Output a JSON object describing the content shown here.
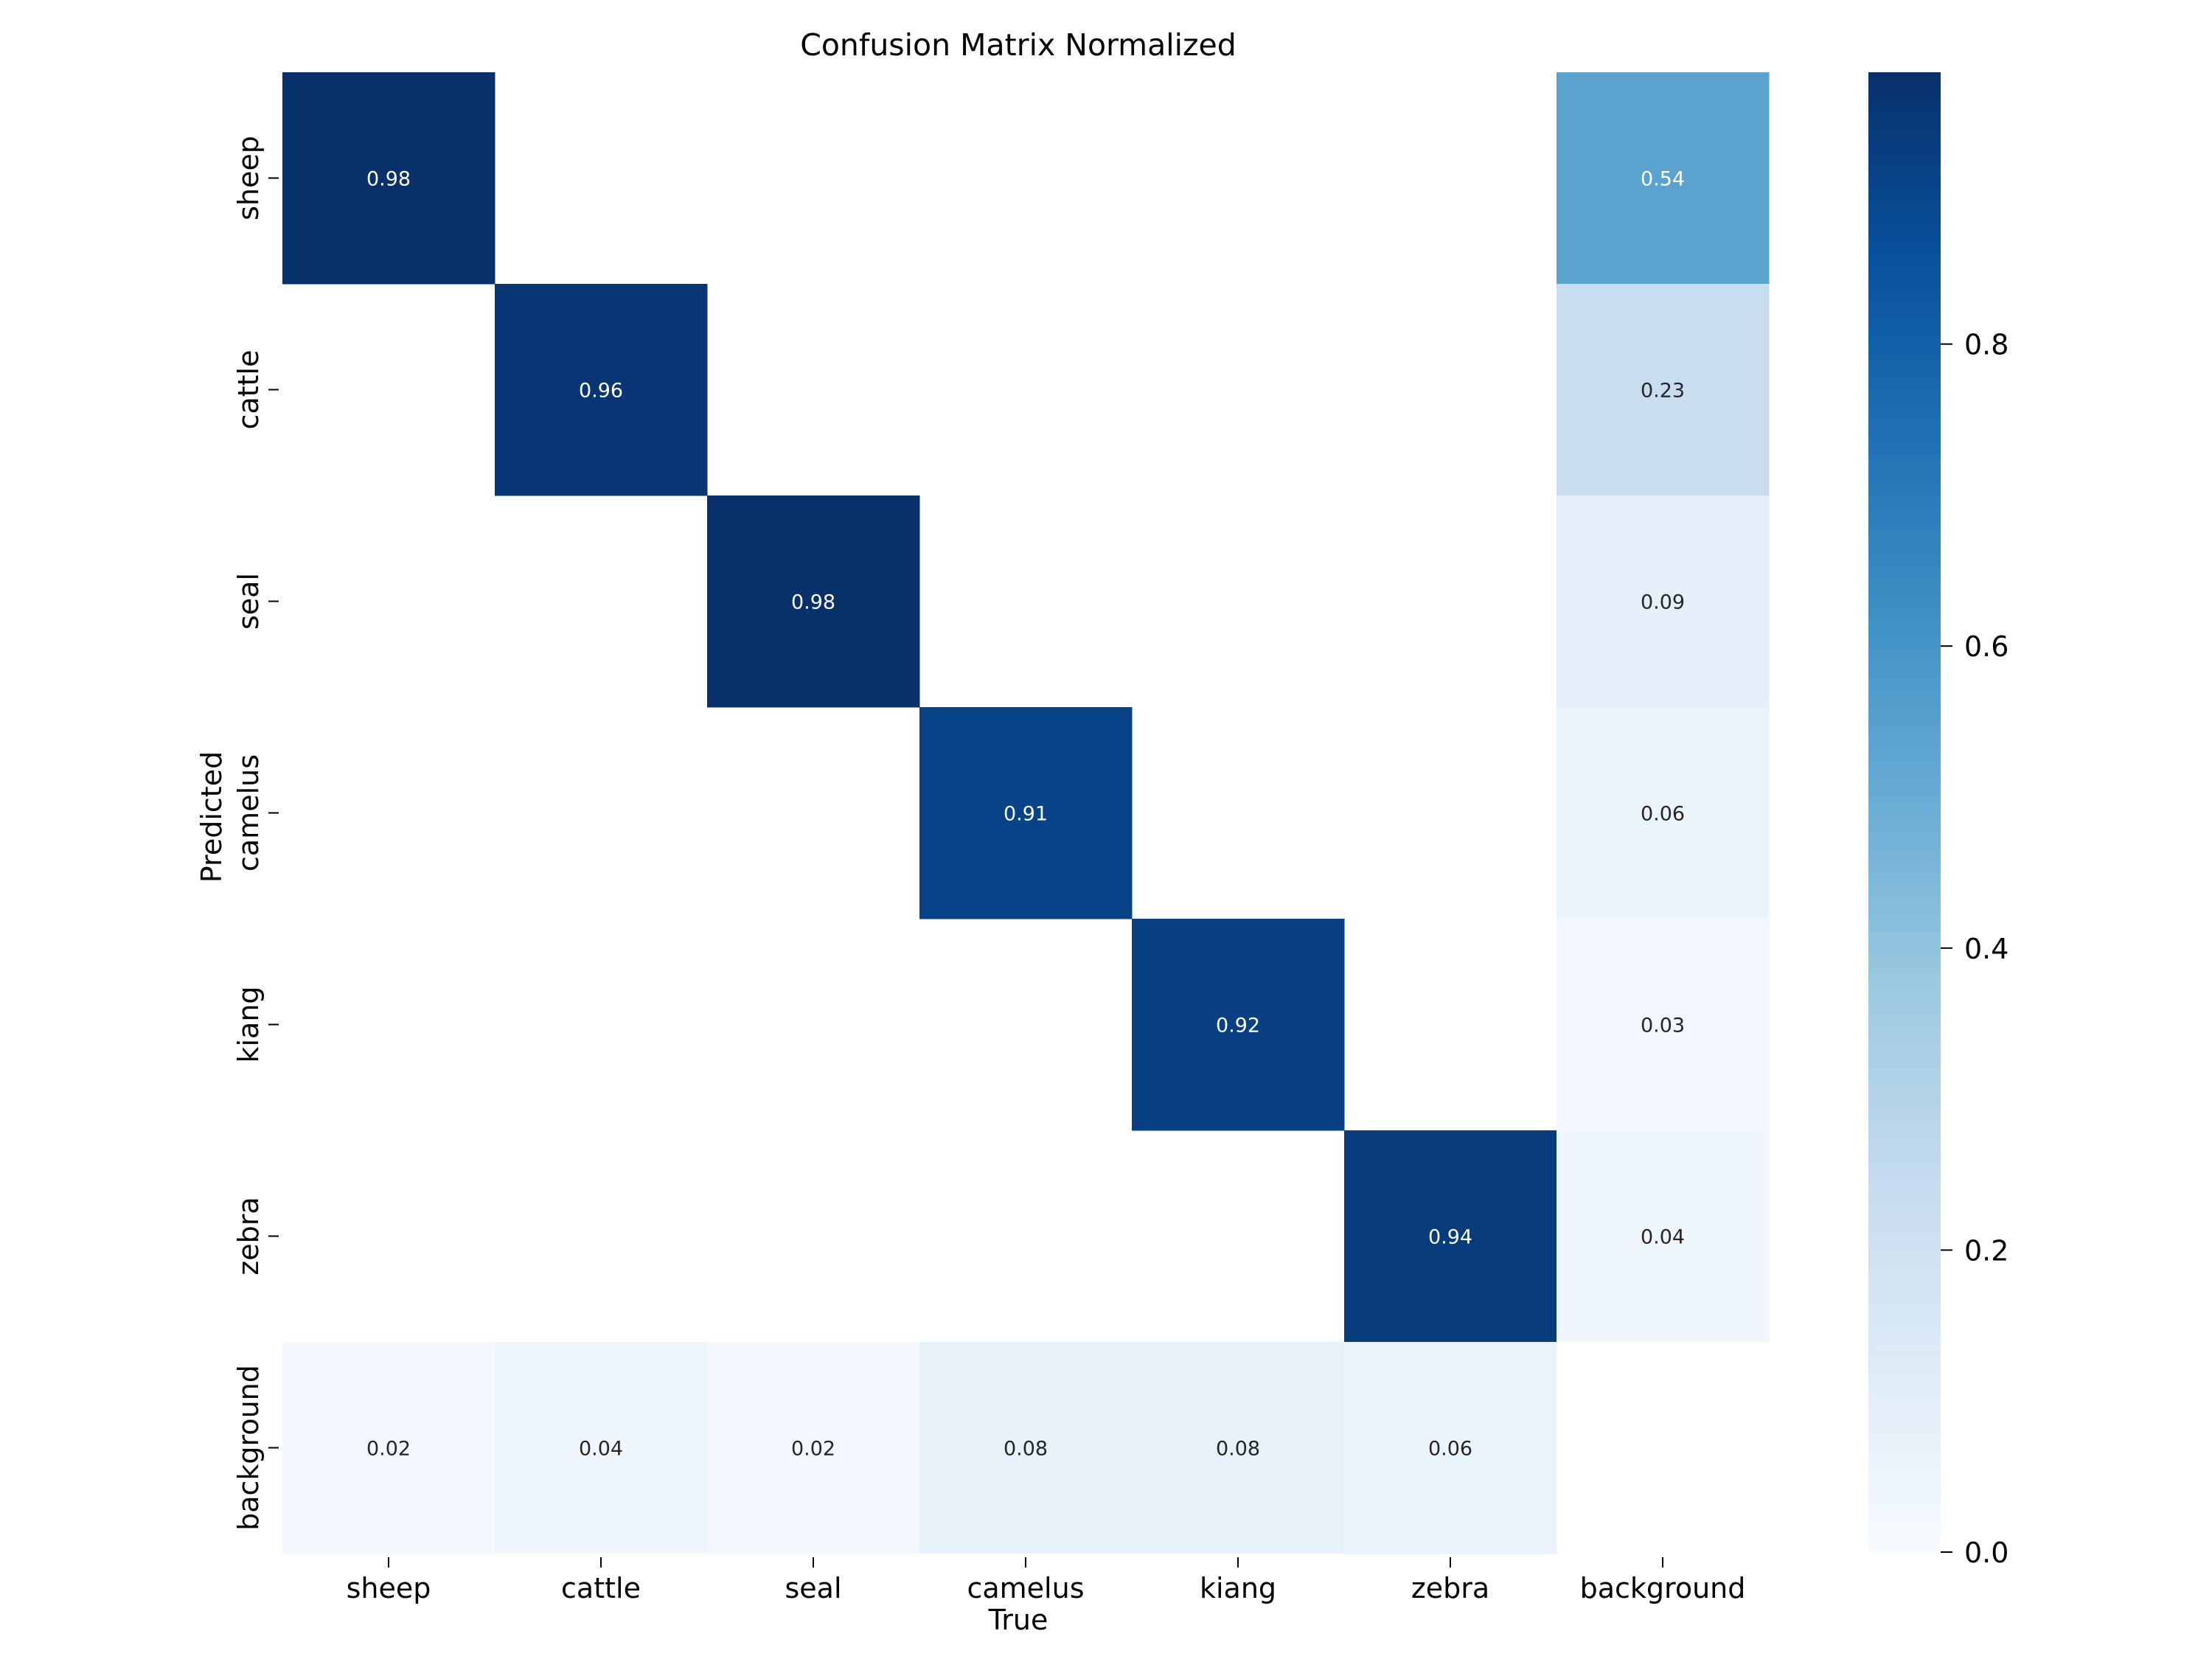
{
  "chart_data": {
    "type": "heatmap",
    "title": "Confusion Matrix Normalized",
    "xlabel": "True",
    "ylabel": "Predicted",
    "x_categories": [
      "sheep",
      "cattle",
      "seal",
      "camelus",
      "kiang",
      "zebra",
      "background"
    ],
    "y_categories": [
      "sheep",
      "cattle",
      "seal",
      "camelus",
      "kiang",
      "zebra",
      "background"
    ],
    "values": [
      [
        0.98,
        null,
        null,
        null,
        null,
        null,
        0.54
      ],
      [
        null,
        0.96,
        null,
        null,
        null,
        null,
        0.23
      ],
      [
        null,
        null,
        0.98,
        null,
        null,
        null,
        0.09
      ],
      [
        null,
        null,
        null,
        0.91,
        null,
        null,
        0.06
      ],
      [
        null,
        null,
        null,
        null,
        0.92,
        null,
        0.03
      ],
      [
        null,
        null,
        null,
        null,
        null,
        0.94,
        0.04
      ],
      [
        0.02,
        0.04,
        0.02,
        0.08,
        0.08,
        0.06,
        null
      ]
    ],
    "colormap": "Blues",
    "colorbar": {
      "range": [
        0,
        0.98
      ],
      "ticks": [
        0.0,
        0.2,
        0.4,
        0.6,
        0.8
      ],
      "tick_labels": [
        "0.0",
        "0.2",
        "0.4",
        "0.6",
        "0.8"
      ]
    },
    "grid": false,
    "legend": "colorbar-right"
  }
}
